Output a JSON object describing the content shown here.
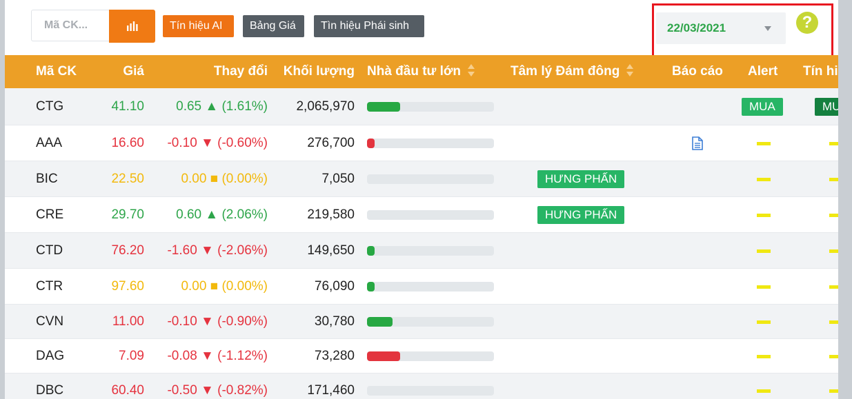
{
  "toolbar": {
    "search_placeholder": "Mã CK...",
    "ai_signal_label": "Tín hiệu AI",
    "price_board_label": "Bảng Giá",
    "derivative_signal_label": "Tìn hiệu Phái sinh",
    "date": "22/03/2021",
    "help": "?"
  },
  "table": {
    "headers": {
      "symbol": "Mã CK",
      "price": "Giá",
      "change": "Thay đổi",
      "volume": "Khối lượng",
      "big_investor": "Nhà đầu tư lớn",
      "crowd": "Tâm lý Đám đông",
      "report": "Báo cáo",
      "alert": "Alert",
      "signal": "Tín hiệu"
    },
    "rows": [
      {
        "symbol": "CTG",
        "price": "41.10",
        "change": "0.65 ▲ (1.61%)",
        "volume": "2,065,970",
        "trend": "up",
        "bar_color": "green",
        "bar_fraction": 0.26,
        "crowd": "",
        "report": false,
        "alert": "MUA",
        "signal": "MUA"
      },
      {
        "symbol": "AAA",
        "price": "16.60",
        "change": "-0.10 ▼ (-0.60%)",
        "volume": "276,700",
        "trend": "down",
        "bar_color": "red",
        "bar_fraction": 0.06,
        "crowd": "",
        "report": true,
        "alert": "",
        "signal": ""
      },
      {
        "symbol": "BIC",
        "price": "22.50",
        "change": "0.00 ■ (0.00%)",
        "volume": "7,050",
        "trend": "flat",
        "bar_color": "green",
        "bar_fraction": 0,
        "crowd": "HƯNG PHẤN",
        "report": false,
        "alert": "",
        "signal": ""
      },
      {
        "symbol": "CRE",
        "price": "29.70",
        "change": "0.60 ▲ (2.06%)",
        "volume": "219,580",
        "trend": "up",
        "bar_color": "green",
        "bar_fraction": 0,
        "crowd": "HƯNG PHẤN",
        "report": false,
        "alert": "",
        "signal": ""
      },
      {
        "symbol": "CTD",
        "price": "76.20",
        "change": "-1.60 ▼ (-2.06%)",
        "volume": "149,650",
        "trend": "down",
        "bar_color": "green",
        "bar_fraction": 0.06,
        "crowd": "",
        "report": false,
        "alert": "",
        "signal": ""
      },
      {
        "symbol": "CTR",
        "price": "97.60",
        "change": "0.00 ■ (0.00%)",
        "volume": "76,090",
        "trend": "flat",
        "bar_color": "green",
        "bar_fraction": 0.06,
        "crowd": "",
        "report": false,
        "alert": "",
        "signal": ""
      },
      {
        "symbol": "CVN",
        "price": "11.00",
        "change": "-0.10 ▼ (-0.90%)",
        "volume": "30,780",
        "trend": "down",
        "bar_color": "green",
        "bar_fraction": 0.2,
        "crowd": "",
        "report": false,
        "alert": "",
        "signal": ""
      },
      {
        "symbol": "DAG",
        "price": "7.09",
        "change": "-0.08 ▼ (-1.12%)",
        "volume": "73,280",
        "trend": "down",
        "bar_color": "red",
        "bar_fraction": 0.26,
        "crowd": "",
        "report": false,
        "alert": "",
        "signal": ""
      },
      {
        "symbol": "DBC",
        "price": "60.40",
        "change": "-0.50 ▼ (-0.82%)",
        "volume": "171,460",
        "trend": "down",
        "bar_color": "green",
        "bar_fraction": 0,
        "crowd": "",
        "report": false,
        "alert": "",
        "signal": ""
      }
    ]
  },
  "colors": {
    "header_bg": "#ec9f26",
    "up": "#2ea54a",
    "down": "#e5333f",
    "flat": "#f2b90c",
    "accent": "#f07a14"
  },
  "icons": [
    "bar-chart-icon",
    "chevron-down-icon",
    "help-icon",
    "sort-icon",
    "document-icon",
    "neutral-dash-icon"
  ]
}
